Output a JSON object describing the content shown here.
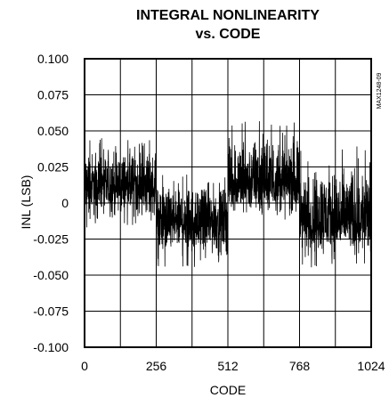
{
  "chart_data": {
    "type": "line",
    "title": "INTEGRAL NONLINEARITY",
    "subtitle": "vs. CODE",
    "xlabel": "CODE",
    "ylabel": "INL (LSB)",
    "figure_id": "MAX1248-09",
    "xlim": [
      0,
      1024
    ],
    "ylim": [
      -0.1,
      0.1
    ],
    "x_ticks": [
      0,
      256,
      512,
      768,
      1024
    ],
    "x_tick_labels": [
      "0",
      "256",
      "512",
      "768",
      "1024"
    ],
    "y_ticks": [
      0.1,
      0.075,
      0.05,
      0.025,
      0,
      -0.025,
      -0.05,
      -0.075,
      -0.1
    ],
    "y_tick_labels": [
      "0.100",
      "0.075",
      "0.050",
      "0.025",
      "0",
      "-0.025",
      "-0.050",
      "-0.075",
      "-0.100"
    ],
    "grid": true,
    "series": [
      {
        "noise_band_by_code_range": [
          {
            "x_start": 0,
            "x_end": 256,
            "center": 0.012,
            "min": -0.018,
            "max": 0.045
          },
          {
            "x_start": 256,
            "x_end": 512,
            "center": -0.012,
            "min": -0.045,
            "max": 0.02
          },
          {
            "x_start": 512,
            "x_end": 768,
            "center": 0.014,
            "min": -0.015,
            "max": 0.057
          },
          {
            "x_start": 768,
            "x_end": 1024,
            "center": -0.012,
            "min": -0.045,
            "max": 0.04
          }
        ]
      }
    ]
  }
}
